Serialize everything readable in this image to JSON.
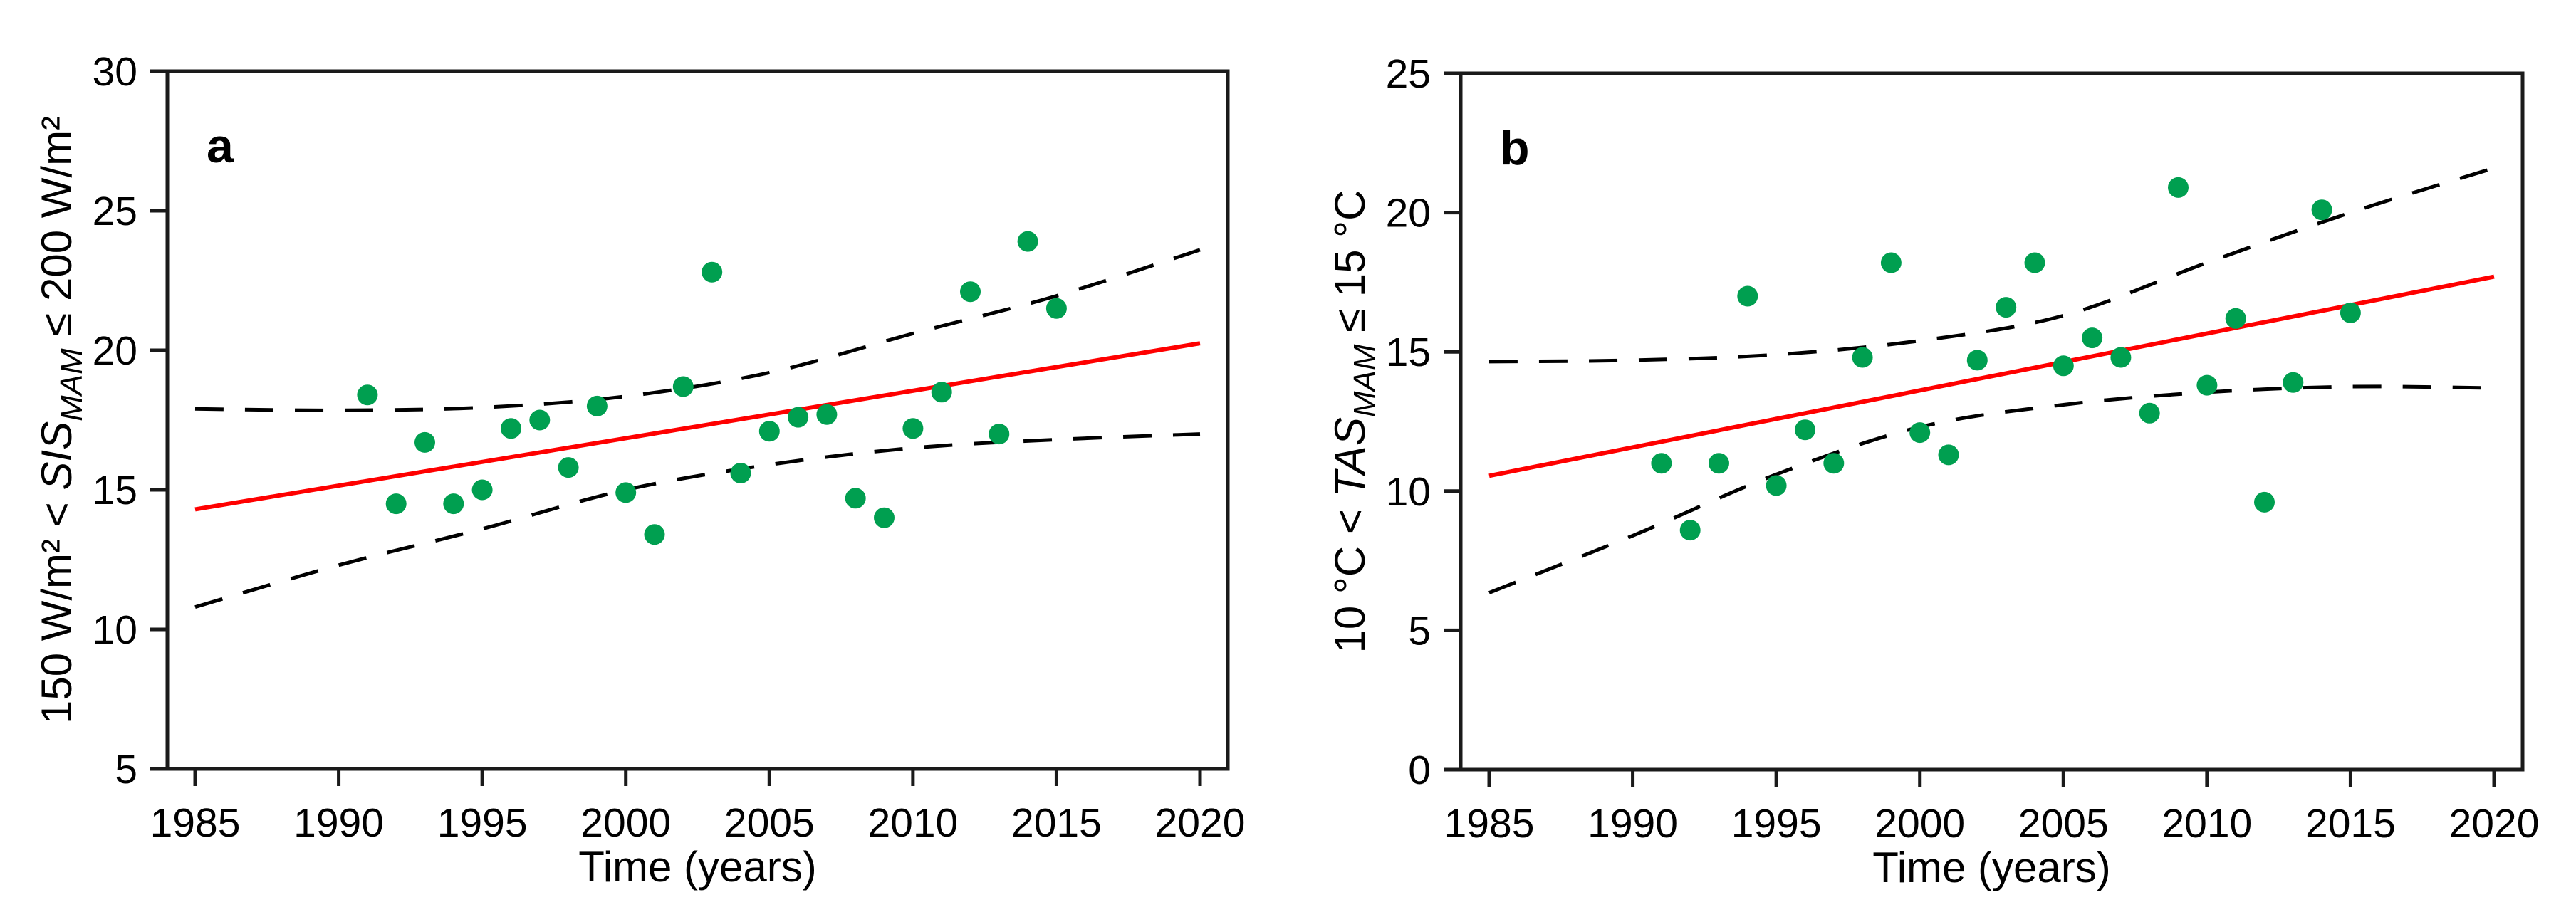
{
  "figure": {
    "background": "#ffffff",
    "description": "Two-panel scatter figure with linear trend lines and dashed confidence bands"
  },
  "colors": {
    "point_green": "#009f50",
    "trend_red": "#ff0000",
    "band_black": "#000000",
    "axis": "#1a1a1a",
    "text": "#000000"
  },
  "chart_data": [
    {
      "type": "scatter",
      "panel_label": "a",
      "xlabel": "Time (years)",
      "ylabel_text": "150 W/m² < SIS_MAM ≤ 200 W/m²",
      "ylabel_parts": [
        {
          "t": "150 W/m² < "
        },
        {
          "t": "SIS",
          "italic": true
        },
        {
          "t": "MAM",
          "italic": true,
          "sub": true
        },
        {
          "t": " ≤ 200 W/m²"
        }
      ],
      "xlim": [
        1985,
        2020
      ],
      "ylim": [
        5,
        30
      ],
      "xticks": [
        1985,
        1990,
        1995,
        2000,
        2005,
        2010,
        2015,
        2020
      ],
      "yticks": [
        5,
        10,
        15,
        20,
        25,
        30
      ],
      "grid": false,
      "legend_position": "none",
      "points": [
        [
          1991,
          18.4
        ],
        [
          1992,
          14.5
        ],
        [
          1993,
          16.7
        ],
        [
          1994,
          14.5
        ],
        [
          1995,
          15.0
        ],
        [
          1996,
          17.2
        ],
        [
          1997,
          17.5
        ],
        [
          1998,
          15.8
        ],
        [
          1999,
          18.0
        ],
        [
          2000,
          14.9
        ],
        [
          2001,
          13.4
        ],
        [
          2002,
          18.7
        ],
        [
          2003,
          22.8
        ],
        [
          2004,
          15.6
        ],
        [
          2005,
          17.1
        ],
        [
          2006,
          17.6
        ],
        [
          2007,
          17.7
        ],
        [
          2008,
          14.7
        ],
        [
          2009,
          14.0
        ],
        [
          2010,
          17.2
        ],
        [
          2011,
          18.5
        ],
        [
          2012,
          22.1
        ],
        [
          2013,
          17.0
        ],
        [
          2014,
          23.9
        ],
        [
          2015,
          21.5
        ]
      ],
      "trend_line": {
        "x": [
          1985,
          2020
        ],
        "y": [
          14.3,
          20.25
        ]
      },
      "band_upper": [
        [
          1985,
          17.9
        ],
        [
          1990,
          17.85
        ],
        [
          1995,
          17.95
        ],
        [
          2000,
          18.35
        ],
        [
          2005,
          19.2
        ],
        [
          2010,
          20.6
        ],
        [
          2015,
          21.95
        ],
        [
          2020,
          23.6
        ]
      ],
      "band_lower": [
        [
          1985,
          10.8
        ],
        [
          1990,
          12.3
        ],
        [
          1995,
          13.6
        ],
        [
          2000,
          15.0
        ],
        [
          2005,
          15.9
        ],
        [
          2010,
          16.5
        ],
        [
          2015,
          16.8
        ],
        [
          2020,
          17.0
        ]
      ]
    },
    {
      "type": "scatter",
      "panel_label": "b",
      "xlabel": "Time (years)",
      "ylabel_text": "10 °C < TAS_MAM ≤ 15 °C",
      "ylabel_parts": [
        {
          "t": "10 °C < "
        },
        {
          "t": "TAS",
          "italic": true
        },
        {
          "t": "MAM",
          "italic": true,
          "sub": true
        },
        {
          "t": " ≤ 15 °C"
        }
      ],
      "xlim": [
        1985,
        2020
      ],
      "ylim": [
        0,
        25
      ],
      "xticks": [
        1985,
        1990,
        1995,
        2000,
        2005,
        2010,
        2015,
        2020
      ],
      "yticks": [
        0,
        5,
        10,
        15,
        20,
        25
      ],
      "grid": false,
      "legend_position": "none",
      "points": [
        [
          1991,
          11.0
        ],
        [
          1992,
          8.6
        ],
        [
          1993,
          11.0
        ],
        [
          1994,
          17.0
        ],
        [
          1995,
          10.2
        ],
        [
          1996,
          12.2
        ],
        [
          1997,
          11.0
        ],
        [
          1998,
          14.8
        ],
        [
          1999,
          18.2
        ],
        [
          2000,
          12.1
        ],
        [
          2001,
          11.3
        ],
        [
          2002,
          14.7
        ],
        [
          2003,
          16.6
        ],
        [
          2004,
          18.2
        ],
        [
          2005,
          14.5
        ],
        [
          2006,
          15.5
        ],
        [
          2007,
          14.8
        ],
        [
          2008,
          12.8
        ],
        [
          2009,
          20.9
        ],
        [
          2010,
          13.8
        ],
        [
          2011,
          16.2
        ],
        [
          2012,
          9.6
        ],
        [
          2013,
          13.9
        ],
        [
          2014,
          20.1
        ],
        [
          2015,
          16.4
        ]
      ],
      "trend_line": {
        "x": [
          1985,
          2020
        ],
        "y": [
          10.55,
          17.7
        ]
      },
      "band_upper": [
        [
          1985,
          14.65
        ],
        [
          1990,
          14.7
        ],
        [
          1995,
          14.9
        ],
        [
          2000,
          15.4
        ],
        [
          2005,
          16.3
        ],
        [
          2010,
          18.2
        ],
        [
          2015,
          20.0
        ],
        [
          2020,
          21.6
        ]
      ],
      "band_lower": [
        [
          1985,
          6.35
        ],
        [
          1990,
          8.4
        ],
        [
          1995,
          10.6
        ],
        [
          2000,
          12.3
        ],
        [
          2005,
          13.1
        ],
        [
          2010,
          13.55
        ],
        [
          2015,
          13.75
        ],
        [
          2020,
          13.7
        ]
      ]
    }
  ]
}
